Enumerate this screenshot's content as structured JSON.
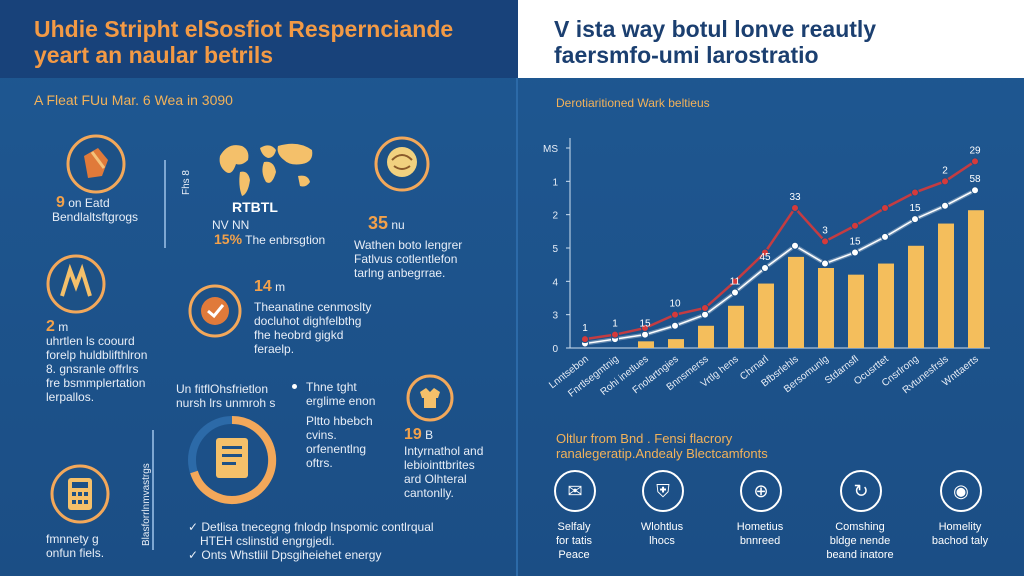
{
  "header": {
    "left_line1": "Uhdie Stripht elSosfiot Respernciande",
    "left_line2": "yeart an naular betrils",
    "right_line1": "V ista way botul lonve reautly",
    "right_line2": "faersmfo-umi larostratio"
  },
  "left": {
    "subtitle": "A Fleat FUu Mar. 6 Wea in 3090",
    "b1_value": "9",
    "b1_value_rest": "on Eatd",
    "b1_text": "Bendlaltsftgrogs",
    "vert_label": "Fhs 8",
    "map_l1": "RTBTL",
    "map_nv": "NV NN",
    "map_pct": "15%",
    "map_text": "The enbrsgtion",
    "b3_value": "35",
    "b3_value_rest": "nu",
    "b3_l1": "Wathen boto lengrer",
    "b3_l2": "Fatlvus cotlentlefon",
    "b3_l3": "tarlng anbegrrae.",
    "b4_value": "2",
    "b4_value_rest": "m",
    "b4_l1": "uhrtlen ls coourd",
    "b4_l2": "forelp huldblifthlron",
    "b4_l3": "8. gnsranle offrlrs",
    "b4_l4": "fre bsmmplertation",
    "b4_l5": "lerpallos.",
    "b5_value": "14",
    "b5_value_rest": "m",
    "b5_l1": "Theanatine cenmoslty",
    "b5_l2": "docluhot dighfelbthg",
    "b5_l3": "fhe heobrd gigkd",
    "b5_l4": "feraelp.",
    "b6_head1": "Un fitflOhsfrietlon",
    "b6_head2": "nursh lrs unmroh s",
    "b6_bullet_l1": "Thne tght",
    "b6_bullet_l2": "erglime enon",
    "b6_t1": "Pltto hbebch",
    "b6_t2": "cvins.",
    "b6_t3": "orfenentlng",
    "b6_t4": "oftrs.",
    "b7_value": "19",
    "b7_value_rest": "B",
    "b7_l1": "Intyrnathol and",
    "b7_l2": "lebiointtbrites",
    "b7_l3": "ard Olhteral",
    "b7_l4": "cantonlly.",
    "vert_label2": "Blasforrlnmvastrgs",
    "b8_l1": "fmnnety g",
    "b8_l2": "onfun fiels.",
    "bottom_l1": "Detlisa tnecegng fnlodp Inspomic contlrqual",
    "bottom_l2": "HTEH cslinstid engrgjedi.",
    "bottom_l3": "Onts Whstliil Dpsgiheiehet energy"
  },
  "right": {
    "chart_subtitle": "Derotiaritioned Wark beltieus",
    "bottom_title1": "Oltlur from Bnd . Fensi flacrory",
    "bottom_title2": "ranalegeratip.Andealy Blectcamfonts",
    "icons": [
      {
        "l1": "Selfaly",
        "l2": "for tatis",
        "l3": "Peace",
        "icon": "envelope-icon"
      },
      {
        "l1": "Wlohtlus",
        "l2": "lhocs",
        "l3": "",
        "icon": "shield-icon"
      },
      {
        "l1": "Hometius",
        "l2": "bnnreed",
        "l3": "",
        "icon": "globe-icon"
      },
      {
        "l1": "Comshing",
        "l2": "bldge nende",
        "l3": "beand inatore",
        "icon": "cycle-icon"
      },
      {
        "l1": "Homelity",
        "l2": "bachod taly",
        "l3": "",
        "icon": "bag-icon"
      }
    ]
  },
  "chart_data": {
    "type": "bar",
    "title": "Derotiaritioned Wark beltieus",
    "ytick_labels": [
      "0",
      "3",
      "4",
      "5",
      "2",
      "1",
      "MS"
    ],
    "categories": [
      "Lnntsebon",
      "Fnrtlsegmtnig",
      "Rohi inetlues",
      "Fnolartngies",
      "Bnnsmerss",
      "Vrtlg hens",
      "Chrnarl",
      "Bfbsrlehls",
      "Bersomunlg",
      "Stdarnsfl",
      "Ocusrttet",
      "Cnsrlrong",
      "Rvtunesfrsls",
      "Wnttaerts"
    ],
    "bar_values": [
      0,
      0,
      0.3,
      0.4,
      1.0,
      1.9,
      2.9,
      4.1,
      3.6,
      3.3,
      3.8,
      4.6,
      5.6,
      6.2
    ],
    "series": [
      {
        "name": "",
        "color": "#f4f4f4",
        "values": [
          0.2,
          0.4,
          0.6,
          1.0,
          1.5,
          2.5,
          3.6,
          4.6,
          3.8,
          4.3,
          5.0,
          5.8,
          6.4,
          7.1
        ]
      },
      {
        "name": "",
        "color": "#d63a3a",
        "values": [
          0.4,
          0.6,
          0.9,
          1.5,
          1.8,
          3.0,
          4.3,
          6.3,
          4.8,
          5.5,
          6.3,
          7.0,
          7.5,
          8.4
        ]
      }
    ],
    "point_labels": [
      {
        "i": 0,
        "s": 1,
        "text": "1"
      },
      {
        "i": 1,
        "s": 1,
        "text": "1"
      },
      {
        "i": 2,
        "s": 0,
        "text": "15"
      },
      {
        "i": 3,
        "s": 1,
        "text": "10"
      },
      {
        "i": 5,
        "s": 0,
        "text": "11"
      },
      {
        "i": 6,
        "s": 0,
        "text": "45"
      },
      {
        "i": 7,
        "s": 1,
        "text": "33"
      },
      {
        "i": 8,
        "s": 1,
        "text": "3"
      },
      {
        "i": 9,
        "s": 0,
        "text": "15"
      },
      {
        "i": 11,
        "s": 0,
        "text": "15"
      },
      {
        "i": 12,
        "s": 1,
        "text": "2"
      },
      {
        "i": 13,
        "s": 1,
        "text": "29"
      },
      {
        "i": 13,
        "s": 0,
        "text": "58"
      }
    ],
    "ylim": [
      0,
      9
    ],
    "colors": {
      "bars": "#f4be5c",
      "axis": "#cfe0f0"
    }
  }
}
